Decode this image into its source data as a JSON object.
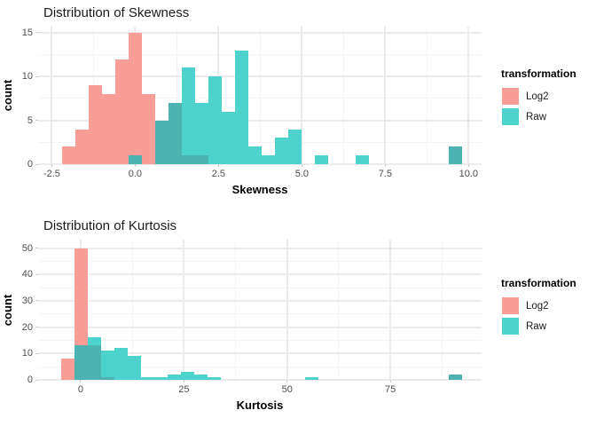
{
  "colors": {
    "log2_fill": "#F99D97",
    "raw_fill": "#4DD2CE",
    "overlap_fill": "#4DB3B0",
    "grid_major": "#EBEBEB",
    "grid_minor": "#F4F4F4",
    "tick_label": "#4D4D4D",
    "text": "#1A1A1A"
  },
  "chart_data": [
    {
      "type": "bar",
      "subtype": "histogram-overlaid",
      "title": "Distribution of Skewness",
      "xlabel": "Skewness",
      "ylabel": "count",
      "legend_title": "transformation",
      "series_names": [
        "Log2",
        "Raw"
      ],
      "legend_position": "right",
      "grid": true,
      "x_range": [
        -2.91,
        10.39
      ],
      "y_range": [
        0,
        15.7
      ],
      "x_tick_values": [
        -2.5,
        0,
        2.5,
        5,
        7.5,
        10
      ],
      "x_tick_labels": [
        "-2.5",
        "0.0",
        "2.5",
        "5.0",
        "7.5",
        "10.0"
      ],
      "x_minor_values": [
        -1.25,
        1.25,
        3.75,
        6.25,
        8.75
      ],
      "y_tick_values": [
        0,
        5,
        10,
        15
      ],
      "y_tick_labels": [
        "0",
        "5",
        "10",
        "15"
      ],
      "y_minor_values": [
        2.5,
        7.5,
        12.5
      ],
      "bins": [
        {
          "x0": -2.2,
          "x1": -1.8,
          "Log2": 2,
          "Raw": 0
        },
        {
          "x0": -1.8,
          "x1": -1.4,
          "Log2": 4,
          "Raw": 0
        },
        {
          "x0": -1.4,
          "x1": -1.0,
          "Log2": 9,
          "Raw": 0
        },
        {
          "x0": -1.0,
          "x1": -0.6,
          "Log2": 8,
          "Raw": 0
        },
        {
          "x0": -0.6,
          "x1": -0.2,
          "Log2": 12,
          "Raw": 0
        },
        {
          "x0": -0.2,
          "x1": 0.2,
          "Log2": 15,
          "Raw": 1
        },
        {
          "x0": 0.2,
          "x1": 0.6,
          "Log2": 8,
          "Raw": 0
        },
        {
          "x0": 0.6,
          "x1": 1.0,
          "Log2": 5,
          "Raw": 5
        },
        {
          "x0": 1.0,
          "x1": 1.4,
          "Log2": 7,
          "Raw": 7
        },
        {
          "x0": 1.4,
          "x1": 1.8,
          "Log2": 1,
          "Raw": 11
        },
        {
          "x0": 1.8,
          "x1": 2.2,
          "Log2": 1,
          "Raw": 7
        },
        {
          "x0": 2.2,
          "x1": 2.6,
          "Log2": 0,
          "Raw": 10
        },
        {
          "x0": 2.6,
          "x1": 3.0,
          "Log2": 0,
          "Raw": 6
        },
        {
          "x0": 3.0,
          "x1": 3.4,
          "Log2": 0,
          "Raw": 13
        },
        {
          "x0": 3.4,
          "x1": 3.8,
          "Log2": 0,
          "Raw": 2
        },
        {
          "x0": 3.8,
          "x1": 4.2,
          "Log2": 0,
          "Raw": 1
        },
        {
          "x0": 4.2,
          "x1": 4.6,
          "Log2": 0,
          "Raw": 3
        },
        {
          "x0": 4.6,
          "x1": 5.0,
          "Log2": 0,
          "Raw": 4
        },
        {
          "x0": 5.4,
          "x1": 5.8,
          "Log2": 0,
          "Raw": 1
        },
        {
          "x0": 6.6,
          "x1": 7.0,
          "Log2": 0,
          "Raw": 1
        },
        {
          "x0": 9.4,
          "x1": 9.8,
          "Log2": 2,
          "Raw": 2
        }
      ]
    },
    {
      "type": "bar",
      "subtype": "histogram-overlaid",
      "title": "Distribution of Kurtosis",
      "xlabel": "Kurtosis",
      "ylabel": "count",
      "legend_title": "transformation",
      "series_names": [
        "Log2",
        "Raw"
      ],
      "legend_position": "right",
      "grid": true,
      "x_range": [
        -10.3,
        97.1
      ],
      "y_range": [
        0,
        53.2
      ],
      "x_tick_values": [
        0,
        25,
        50,
        75
      ],
      "x_tick_labels": [
        "0",
        "25",
        "50",
        "75"
      ],
      "x_minor_values": [
        12.5,
        37.5,
        62.5,
        87.5
      ],
      "y_tick_values": [
        0,
        10,
        20,
        30,
        40,
        50
      ],
      "y_tick_labels": [
        "0",
        "10",
        "20",
        "30",
        "40",
        "50"
      ],
      "y_minor_values": [
        5,
        15,
        25,
        35,
        45
      ],
      "bins": [
        {
          "x0": -4.7,
          "x1": -1.5,
          "Log2": 8,
          "Raw": 0
        },
        {
          "x0": -1.5,
          "x1": 1.7,
          "Log2": 50,
          "Raw": 13
        },
        {
          "x0": 1.7,
          "x1": 5.0,
          "Log2": 13,
          "Raw": 16
        },
        {
          "x0": 5.0,
          "x1": 8.2,
          "Log2": 1,
          "Raw": 11
        },
        {
          "x0": 8.2,
          "x1": 11.4,
          "Log2": 0,
          "Raw": 12
        },
        {
          "x0": 11.4,
          "x1": 14.6,
          "Log2": 0,
          "Raw": 9
        },
        {
          "x0": 14.6,
          "x1": 17.8,
          "Log2": 0,
          "Raw": 1
        },
        {
          "x0": 17.8,
          "x1": 21.0,
          "Log2": 0,
          "Raw": 1
        },
        {
          "x0": 21.0,
          "x1": 24.3,
          "Log2": 0,
          "Raw": 2
        },
        {
          "x0": 24.3,
          "x1": 27.5,
          "Log2": 0,
          "Raw": 3
        },
        {
          "x0": 27.5,
          "x1": 30.7,
          "Log2": 0,
          "Raw": 2
        },
        {
          "x0": 30.7,
          "x1": 33.9,
          "Log2": 0,
          "Raw": 1
        },
        {
          "x0": 54.4,
          "x1": 57.6,
          "Log2": 0,
          "Raw": 1
        },
        {
          "x0": 89.2,
          "x1": 92.4,
          "Log2": 2,
          "Raw": 2
        }
      ]
    }
  ]
}
